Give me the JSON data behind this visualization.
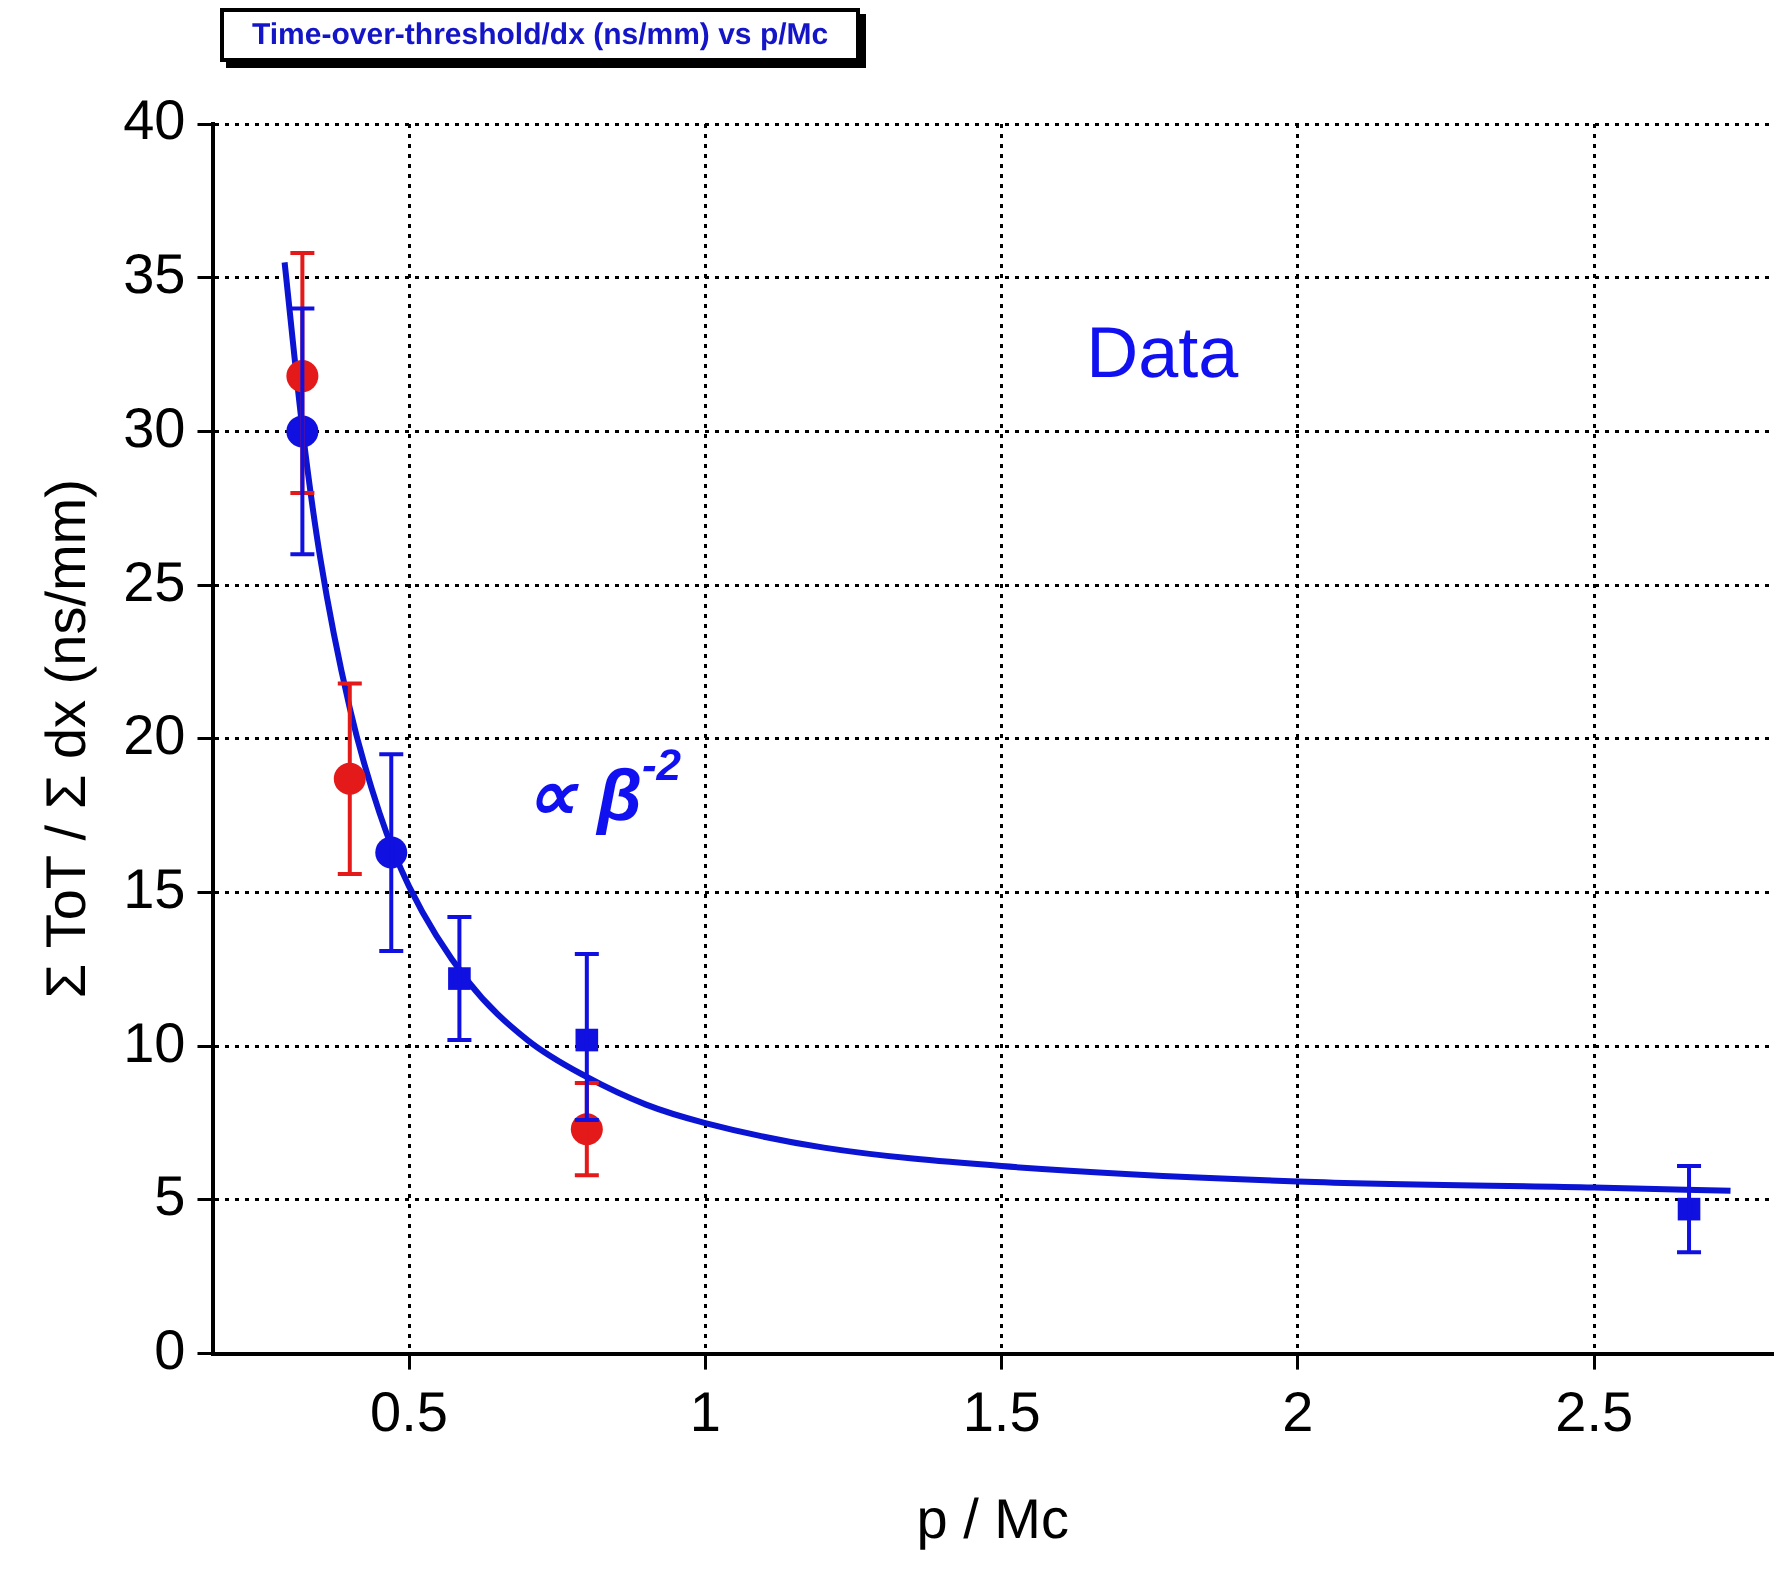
{
  "chart_data": {
    "type": "scatter",
    "title": "Time-over-threshold/dx (ns/mm) vs p/Mc",
    "xlabel": "p / Mc",
    "ylabel": "Σ ToT / Σ dx (ns/mm)",
    "annotations": [
      "Data",
      "∝ β$^{-2}$"
    ],
    "xlim": [
      0.17,
      2.8
    ],
    "xticks": [
      0.5,
      1,
      1.5,
      2,
      2.5
    ],
    "ylim": [
      0,
      40
    ],
    "yticks": [
      0,
      5,
      10,
      15,
      20,
      25,
      30,
      35,
      40
    ],
    "grid": true,
    "legend": false,
    "series": [
      {
        "type": "line",
        "color": "#0a14d2",
        "marker": "none",
        "line_style": "solid",
        "x": [
          0.29,
          0.32,
          0.35,
          0.4,
          0.45,
          0.5,
          0.6,
          0.7,
          0.8,
          0.9,
          1.0,
          1.2,
          1.5,
          2.0,
          2.5,
          2.73
        ],
        "values": [
          35.5,
          30.1,
          25.9,
          21.0,
          17.6,
          15.2,
          12.1,
          10.2,
          9.0,
          8.1,
          7.5,
          6.7,
          6.1,
          5.6,
          5.4,
          5.3
        ]
      },
      {
        "color": "#e41a1a",
        "marker": "circle",
        "x": [
          0.32,
          0.4,
          0.8
        ],
        "values": [
          31.8,
          18.7,
          7.3
        ],
        "errors": [
          [
            28,
            35.8
          ],
          [
            15.6,
            21.8
          ],
          [
            5.8,
            8.8
          ]
        ]
      },
      {
        "color": "#1010e0",
        "marker": "circle",
        "x": [
          0.32,
          0.47
        ],
        "values": [
          30,
          16.3
        ],
        "errors": [
          [
            26,
            34
          ],
          [
            13.1,
            19.5
          ]
        ]
      },
      {
        "color": "#1010e0",
        "marker": "square",
        "x": [
          0.585,
          0.8,
          2.66
        ],
        "values": [
          12.2,
          10.2,
          4.7
        ],
        "errors": [
          [
            10.2,
            14.2
          ],
          [
            7.6,
            13
          ],
          [
            3.3,
            6.1
          ]
        ]
      }
    ]
  }
}
